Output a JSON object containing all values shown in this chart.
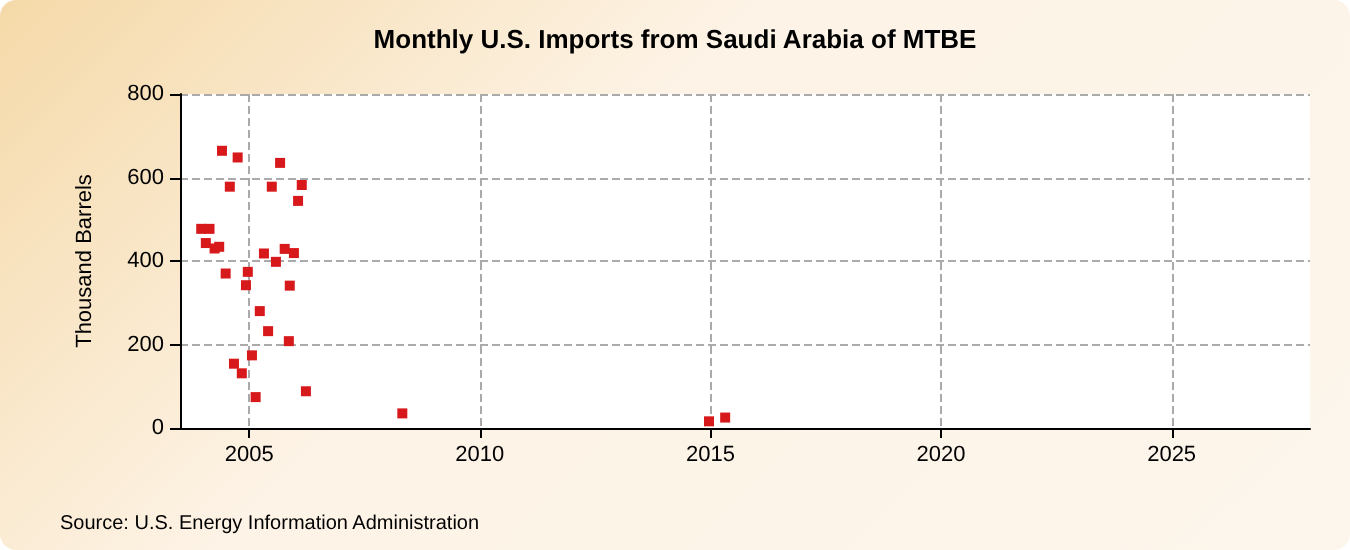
{
  "chart_data": {
    "type": "scatter",
    "title": "Monthly U.S. Imports from Saudi Arabia of MTBE",
    "ylabel": "Thousand Barrels",
    "annotations": [
      "Source: U.S. Energy Information Administration"
    ],
    "series": [
      {
        "color": "#d7191c",
        "x": [
          2003.96,
          2004.06,
          2004.14,
          2004.25,
          2004.35,
          2004.41,
          2004.49,
          2004.58,
          2004.67,
          2004.75,
          2004.84,
          2004.93,
          2004.97,
          2005.06,
          2005.14,
          2005.23,
          2005.32,
          2005.41,
          2005.49,
          2005.58,
          2005.67,
          2005.77,
          2005.86,
          2005.88,
          2005.97,
          2006.06,
          2006.14,
          2006.23,
          2008.32,
          2014.97,
          2015.32
        ],
        "values": [
          477,
          443,
          477,
          430,
          434,
          664,
          370,
          578,
          154,
          648,
          131,
          342,
          374,
          174,
          74,
          280,
          418,
          232,
          578,
          398,
          635,
          429,
          208,
          341,
          419,
          544,
          582,
          88,
          35,
          16,
          25
        ]
      }
    ],
    "xlim": [
      2003.5,
      2028
    ],
    "xticks": [
      2005,
      2010,
      2015,
      2020,
      2025
    ],
    "ylim": [
      0,
      800
    ],
    "yticks": [
      0,
      200,
      400,
      600,
      800
    ],
    "grid": true,
    "marker": "square"
  }
}
